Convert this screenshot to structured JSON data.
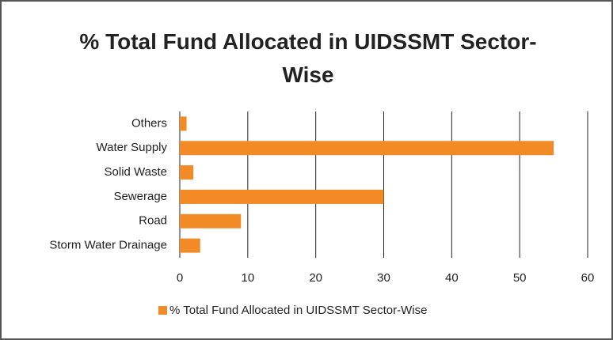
{
  "chart_data": {
    "type": "barh",
    "title": "% Total Fund Allocated in UIDSSMT Sector-Wise",
    "categories": [
      "Others",
      "Water Supply",
      "Solid Waste",
      "Sewerage",
      "Road",
      "Storm Water Drainage"
    ],
    "series": [
      {
        "name": "% Total Fund Allocated in UIDSSMT Sector-Wise",
        "color": "#f28a26",
        "values": [
          1,
          55,
          2,
          30,
          9,
          3
        ]
      }
    ],
    "xlim": [
      0,
      60
    ],
    "xticks": [
      0,
      10,
      20,
      30,
      40,
      50,
      60
    ],
    "grid": true,
    "legend": "bottom"
  }
}
